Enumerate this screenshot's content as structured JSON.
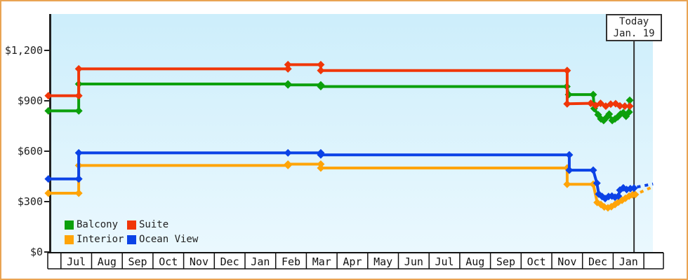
{
  "window": {
    "frame_color": "#e9a453",
    "background": "#ffffff"
  },
  "chart_data": {
    "type": "line",
    "style": "stepped-price-history",
    "plot_background": {
      "top": "#cdeefb",
      "bottom": "#eaf8fe"
    },
    "axis_color": "#222222",
    "y_axis": {
      "ticks": [
        {
          "label": "$1,200",
          "value": 1200
        },
        {
          "label": "$900",
          "value": 900
        },
        {
          "label": "$600",
          "value": 600
        },
        {
          "label": "$300",
          "value": 300
        },
        {
          "label": "$0",
          "value": 0
        }
      ],
      "ylim": [
        0,
        1415
      ]
    },
    "x_axis": {
      "months": [
        "Jul",
        "Aug",
        "Sep",
        "Oct",
        "Nov",
        "Dec",
        "Jan",
        "Feb",
        "Mar",
        "Apr",
        "May",
        "Jun",
        "Jul",
        "Aug",
        "Sep",
        "Oct",
        "Nov",
        "Dec",
        "Jan"
      ],
      "xlim_months": [
        -0.43,
        19.3
      ]
    },
    "today": {
      "line1": "Today",
      "line2": "Jan. 19",
      "month_position": 18.68,
      "line_color": "#333333"
    },
    "legend": {
      "items": [
        {
          "label": "Balcony",
          "color": "#0ca00c"
        },
        {
          "label": "Suite",
          "color": "#f03608"
        },
        {
          "label": "Interior",
          "color": "#ffa408"
        },
        {
          "label": "Ocean View",
          "color": "#0b42e6"
        }
      ]
    },
    "series": [
      {
        "name": "Balcony",
        "color": "#0ca00c",
        "points": [
          [
            -0.41,
            840
          ],
          [
            0.58,
            840
          ],
          [
            0.58,
            1000
          ],
          [
            7.4,
            1000
          ],
          [
            7.4,
            995
          ],
          [
            8.47,
            995
          ],
          [
            8.47,
            985
          ],
          [
            16.49,
            985
          ],
          [
            16.55,
            937
          ],
          [
            17.35,
            937
          ],
          [
            17.38,
            854
          ],
          [
            17.51,
            817
          ],
          [
            17.6,
            792
          ],
          [
            17.69,
            783
          ],
          [
            17.78,
            800
          ],
          [
            17.87,
            821
          ],
          [
            17.97,
            783
          ],
          [
            18.06,
            792
          ],
          [
            18.15,
            804
          ],
          [
            18.24,
            821
          ],
          [
            18.33,
            829
          ],
          [
            18.42,
            808
          ],
          [
            18.52,
            833
          ],
          [
            18.54,
            903
          ]
        ]
      },
      {
        "name": "Suite",
        "color": "#f03608",
        "points": [
          [
            -0.41,
            930
          ],
          [
            0.58,
            930
          ],
          [
            0.58,
            1090
          ],
          [
            7.4,
            1090
          ],
          [
            7.4,
            1115
          ],
          [
            8.47,
            1115
          ],
          [
            8.47,
            1080
          ],
          [
            16.5,
            1080
          ],
          [
            16.5,
            882
          ],
          [
            17.27,
            885
          ],
          [
            17.43,
            872
          ],
          [
            17.59,
            885
          ],
          [
            17.76,
            868
          ],
          [
            17.92,
            880
          ],
          [
            18.08,
            883
          ],
          [
            18.22,
            870
          ],
          [
            18.38,
            868
          ],
          [
            18.54,
            868
          ]
        ]
      },
      {
        "name": "Interior",
        "color": "#ffa408",
        "points": [
          [
            -0.41,
            350
          ],
          [
            0.58,
            350
          ],
          [
            0.58,
            515
          ],
          [
            7.4,
            515
          ],
          [
            7.4,
            523
          ],
          [
            8.47,
            523
          ],
          [
            8.47,
            500
          ],
          [
            16.5,
            500
          ],
          [
            16.5,
            403
          ],
          [
            17.35,
            403
          ],
          [
            17.48,
            295
          ],
          [
            17.6,
            283
          ],
          [
            17.71,
            268
          ],
          [
            17.83,
            263
          ],
          [
            17.94,
            270
          ],
          [
            18.06,
            283
          ],
          [
            18.17,
            297
          ],
          [
            18.29,
            308
          ],
          [
            18.4,
            320
          ],
          [
            18.52,
            333
          ],
          [
            18.63,
            340
          ],
          [
            18.72,
            342
          ]
        ]
      },
      {
        "name": "Ocean View",
        "color": "#0b42e6",
        "points": [
          [
            -0.41,
            435
          ],
          [
            0.58,
            435
          ],
          [
            0.58,
            590
          ],
          [
            7.4,
            590
          ],
          [
            8.47,
            590
          ],
          [
            8.47,
            578
          ],
          [
            16.57,
            578
          ],
          [
            16.57,
            487
          ],
          [
            17.35,
            487
          ],
          [
            17.47,
            410
          ],
          [
            17.53,
            345
          ],
          [
            17.64,
            330
          ],
          [
            17.74,
            318
          ],
          [
            17.85,
            330
          ],
          [
            17.96,
            333
          ],
          [
            18.06,
            326
          ],
          [
            18.17,
            333
          ],
          [
            18.22,
            368
          ],
          [
            18.33,
            382
          ],
          [
            18.44,
            372
          ],
          [
            18.56,
            377
          ],
          [
            18.68,
            380
          ]
        ]
      }
    ],
    "projections": [
      {
        "series": "Ocean View",
        "color": "#0b42e6",
        "dashed": true,
        "points": [
          [
            18.78,
            387
          ],
          [
            19.3,
            405
          ]
        ]
      },
      {
        "series": "Interior",
        "color": "#ffa408",
        "dashed": true,
        "points": [
          [
            18.88,
            355
          ],
          [
            19.25,
            385
          ]
        ]
      }
    ]
  }
}
